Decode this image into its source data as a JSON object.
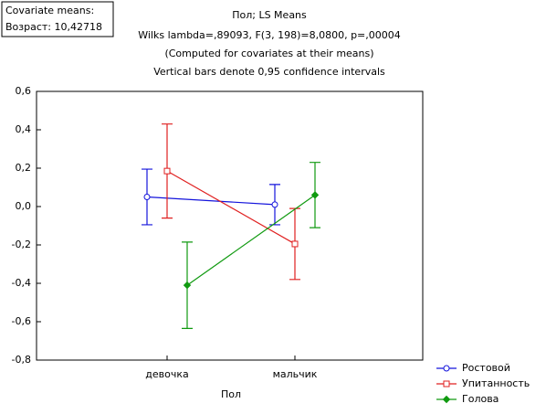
{
  "chart_data": {
    "type": "line",
    "title": "Пол; LS Means",
    "subtitle": [
      "Wilks lambda=,89093, F(3, 198)=8,0800, p=,00004",
      "(Computed for covariates at their means)",
      "Vertical bars denote 0,95 confidence intervals"
    ],
    "covariate_box": [
      "Covariate means:",
      "Возраст: 10,42718"
    ],
    "x_label": "Пол",
    "categories": [
      "девочка",
      "мальчик"
    ],
    "series": [
      {
        "name": "Ростовой",
        "color": "#1414dc",
        "marker": "circle",
        "values": [
          0.05,
          0.01
        ],
        "errors": [
          0.145,
          0.105
        ]
      },
      {
        "name": "Упитанность",
        "color": "#e02020",
        "marker": "square",
        "values": [
          0.185,
          -0.195
        ],
        "errors": [
          0.245,
          0.185
        ]
      },
      {
        "name": "Голова",
        "color": "#109a10",
        "marker": "diamond",
        "values": [
          -0.41,
          0.06
        ],
        "errors": [
          0.225,
          0.17
        ]
      }
    ],
    "ylim": [
      -0.8,
      0.6
    ],
    "yticks": [
      {
        "value": -0.8,
        "label": "-0,8"
      },
      {
        "value": -0.6,
        "label": "-0,6"
      },
      {
        "value": -0.4,
        "label": "-0,4"
      },
      {
        "value": -0.2,
        "label": "-0,2"
      },
      {
        "value": 0,
        "label": "0,0"
      },
      {
        "value": 0.2,
        "label": "0,2"
      },
      {
        "value": 0.4,
        "label": "0,4"
      },
      {
        "value": 0.6,
        "label": "0,6"
      }
    ],
    "legend": "bottom-right"
  }
}
